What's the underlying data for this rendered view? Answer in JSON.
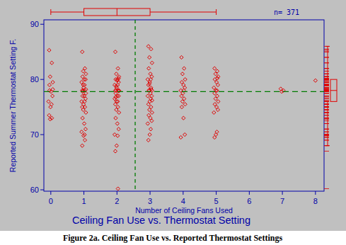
{
  "chart_data": {
    "type": "scatter",
    "title": "Ceiling Fan Use vs. Thermostat Setting",
    "caption": "Figure 2a. Ceiling Fan Use vs. Reported Thermostat Settings",
    "x_label": "Number of Ceiling Fans Used",
    "y_label": "Reported Summer Thermostat Setting F.",
    "annotation": "n= 371",
    "xlim": [
      -0.21,
      8.26
    ],
    "ylim": [
      59.75,
      90.8
    ],
    "xticks": [
      0,
      1,
      2,
      3,
      4,
      5,
      6,
      7,
      8
    ],
    "yticks": [
      60,
      70,
      80,
      90
    ],
    "color": "#e00000",
    "marker": "diamond",
    "reference_lines": {
      "x": 2.55,
      "y": 77.8
    },
    "x_box": {
      "min": 0,
      "q1": 1,
      "median": 2,
      "q3": 3,
      "max": 5
    },
    "y_box": {
      "min": 68,
      "q1": 76,
      "median": 78,
      "q3": 80,
      "max": 86
    },
    "x": [
      -0.05,
      0.03,
      -0.02,
      0.06,
      -0.04,
      0.01,
      0.05,
      -0.07,
      0.02,
      -0.01,
      -0.05,
      0.03,
      -0.02,
      0.06,
      -0.04,
      0.95,
      1.03,
      0.98,
      1.06,
      0.96,
      1.01,
      1.05,
      0.93,
      1.02,
      0.99,
      0.95,
      1.03,
      0.98,
      1.06,
      0.96,
      1.01,
      1.05,
      0.93,
      1.02,
      0.99,
      0.95,
      1.03,
      0.98,
      1.06,
      0.96,
      1.01,
      1.05,
      0.93,
      1.02,
      0.99,
      0.95,
      1.03,
      0.98,
      1.06,
      0.96,
      1.95,
      2.03,
      1.98,
      2.06,
      1.96,
      2.01,
      2.05,
      1.93,
      2.02,
      1.99,
      1.95,
      2.03,
      1.98,
      2.06,
      1.96,
      2.01,
      2.05,
      1.93,
      2.02,
      1.99,
      1.95,
      2.03,
      1.98,
      2.06,
      1.96,
      2.01,
      2.05,
      1.93,
      2.02,
      1.99,
      1.95,
      2.03,
      1.98,
      2.06,
      1.96,
      2.01,
      2.05,
      2.95,
      3.03,
      2.98,
      3.06,
      2.96,
      3.01,
      3.05,
      2.93,
      3.02,
      2.99,
      2.95,
      3.03,
      2.98,
      3.06,
      2.96,
      3.01,
      3.05,
      2.93,
      3.02,
      2.99,
      2.95,
      3.03,
      2.98,
      3.06,
      2.96,
      3.01,
      3.05,
      2.93,
      3.02,
      2.99,
      2.95,
      3.03,
      2.98,
      3.06,
      3.95,
      4.03,
      3.98,
      4.06,
      3.96,
      4.01,
      4.05,
      3.93,
      4.02,
      3.99,
      3.95,
      4.03,
      3.98,
      4.06,
      3.96,
      4.01,
      4.05,
      3.93,
      4.95,
      5.03,
      4.98,
      5.06,
      4.96,
      5.01,
      5.05,
      4.93,
      5.02,
      4.99,
      4.95,
      5.03,
      4.98,
      5.06,
      4.96,
      5.01,
      5.05,
      4.93,
      5.02,
      4.99,
      4.95,
      5.03,
      6.95,
      7.03,
      6.98,
      8.0
    ],
    "values": [
      85.3,
      83,
      80.5,
      79.5,
      78,
      77.8,
      77,
      76,
      75.5,
      75,
      73.5,
      73,
      72.8,
      78.2,
      79,
      85,
      82,
      81.5,
      81,
      80.5,
      80,
      80,
      79.5,
      79,
      78.5,
      78,
      78,
      78,
      77.5,
      77,
      77,
      76.5,
      76,
      76,
      75.5,
      75,
      75,
      74.5,
      74,
      73,
      72,
      71,
      70.5,
      70,
      69.8,
      68,
      69,
      79,
      78.2,
      77.8,
      85,
      82,
      81,
      80.5,
      80,
      80,
      79.5,
      79,
      79,
      78.5,
      78,
      78,
      78,
      78,
      77.5,
      77,
      77,
      76.5,
      76,
      76,
      75.5,
      75,
      74.5,
      74,
      73,
      72,
      71,
      70,
      69.8,
      68,
      67,
      60.2,
      78.8,
      77.9,
      76.8,
      79.8,
      80.2,
      86,
      85.5,
      84,
      83,
      82,
      81,
      80.5,
      80,
      80,
      79.5,
      79,
      78.5,
      78,
      78,
      78,
      77.5,
      77,
      77,
      76.5,
      76,
      75.5,
      75,
      74.5,
      74,
      73.5,
      73,
      72.5,
      72,
      71,
      70,
      69,
      78.2,
      79.2,
      76.2,
      84,
      82,
      81,
      80,
      79.5,
      79,
      78.5,
      78,
      78,
      77.5,
      77,
      76.5,
      76,
      75.5,
      75,
      73,
      70,
      69.5,
      82,
      81.5,
      81,
      80.5,
      80,
      79.5,
      79,
      78.5,
      78,
      78,
      77.5,
      77,
      76.5,
      76,
      75.5,
      75,
      74.5,
      74,
      70.5,
      70,
      69.5,
      80.2,
      78.3,
      78,
      77.8,
      79.8
    ]
  }
}
